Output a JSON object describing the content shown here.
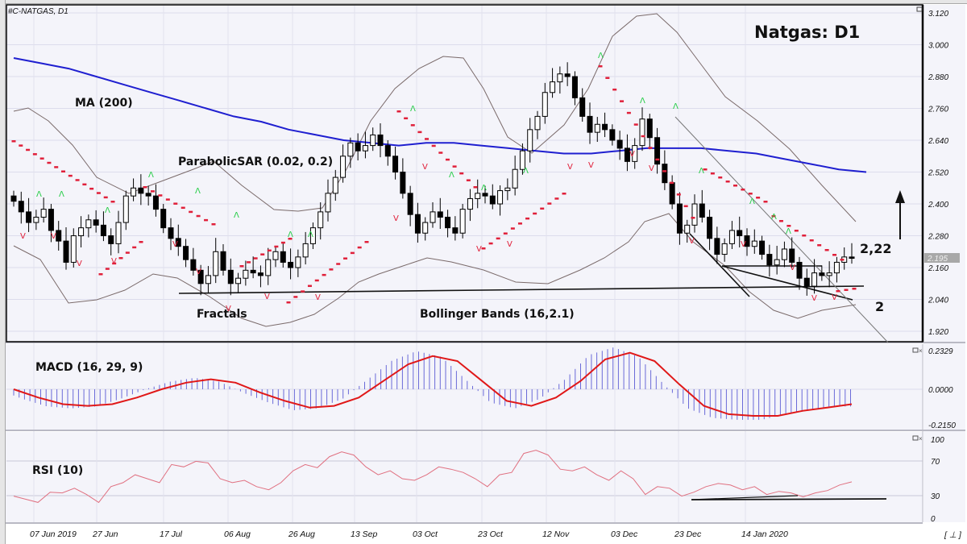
{
  "chart_header": {
    "symbol_label": "#C-NATGAS, D1",
    "title": "Natgas: D1"
  },
  "annotations": {
    "ma": "MA (200)",
    "psar": "ParabolicSAR (0.02, 0.2)",
    "fractals": "Fractals",
    "bollinger": "Bollinger Bands (16,2.1)",
    "macd": "MACD (16, 29, 9)",
    "rsi": "RSI (10)",
    "level_upper": "2,22",
    "level_lower": "2",
    "current_price_tag": "2.195"
  },
  "price_axis": {
    "ticks": [
      "3.120",
      "3.000",
      "2.880",
      "2.760",
      "2.640",
      "2.520",
      "2.400",
      "2.280",
      "2.160",
      "2.040",
      "1.920"
    ]
  },
  "macd_axis": {
    "ticks": [
      "0.2329",
      "0.0000",
      "-0.2150"
    ]
  },
  "rsi_axis": {
    "ticks": [
      "100",
      "70",
      "30",
      "0"
    ]
  },
  "date_axis": {
    "ticks": [
      "07 Jun 2019",
      "27 Jun",
      "17 Jul",
      "06 Aug",
      "26 Aug",
      "13 Sep",
      "03 Oct",
      "23 Oct",
      "12 Nov",
      "03 Dec",
      "23 Dec",
      "14 Jan 2020"
    ]
  },
  "footer": {
    "scroll_label": "[ ⊥ ]"
  },
  "colors": {
    "background": "#f4f4fa",
    "grid": "#dcdcec",
    "ma200": "#1f1fd0",
    "bollinger": "#7a6a6a",
    "psar": "#e0203a",
    "fractal_up": "#22cc44",
    "fractal_down": "#e0203a",
    "macd_hist": "#6a6ad8",
    "macd_signal": "#e01818",
    "rsi_line": "#e07080",
    "bull_candle": "#ffffff",
    "bear_candle": "#000000"
  },
  "chart_data": [
    {
      "type": "candlestick",
      "title": "Natgas: D1",
      "symbol": "#C-NATGAS, D1",
      "xlabel": "",
      "ylabel": "",
      "ylim": [
        1.92,
        3.12
      ],
      "x_ticks": [
        "07 Jun 2019",
        "27 Jun",
        "17 Jul",
        "06 Aug",
        "26 Aug",
        "13 Sep",
        "03 Oct",
        "23 Oct",
        "12 Nov",
        "03 Dec",
        "23 Dec",
        "14 Jan 2020"
      ],
      "closes_approx": [
        2.41,
        2.37,
        2.33,
        2.35,
        2.38,
        2.3,
        2.26,
        2.18,
        2.28,
        2.31,
        2.34,
        2.32,
        2.28,
        2.25,
        2.33,
        2.43,
        2.46,
        2.44,
        2.43,
        2.38,
        2.31,
        2.27,
        2.24,
        2.19,
        2.15,
        2.1,
        2.13,
        2.22,
        2.15,
        2.1,
        2.12,
        2.15,
        2.14,
        2.13,
        2.19,
        2.22,
        2.18,
        2.16,
        2.2,
        2.25,
        2.31,
        2.37,
        2.44,
        2.5,
        2.58,
        2.63,
        2.6,
        2.62,
        2.66,
        2.62,
        2.58,
        2.52,
        2.44,
        2.36,
        2.29,
        2.33,
        2.37,
        2.35,
        2.31,
        2.29,
        2.38,
        2.42,
        2.44,
        2.43,
        2.4,
        2.45,
        2.46,
        2.53,
        2.6,
        2.68,
        2.73,
        2.82,
        2.86,
        2.89,
        2.88,
        2.8,
        2.73,
        2.67,
        2.7,
        2.68,
        2.64,
        2.61,
        2.56,
        2.62,
        2.72,
        2.65,
        2.55,
        2.48,
        2.4,
        2.29,
        2.32,
        2.4,
        2.35,
        2.27,
        2.21,
        2.25,
        2.3,
        2.28,
        2.24,
        2.26,
        2.21,
        2.17,
        2.19,
        2.23,
        2.18,
        2.12,
        2.09,
        2.14,
        2.13,
        2.14,
        2.18,
        2.2,
        2.195
      ],
      "series": [
        {
          "name": "MA (200)",
          "values_approx": [
            2.95,
            2.93,
            2.91,
            2.88,
            2.85,
            2.82,
            2.79,
            2.76,
            2.73,
            2.71,
            2.68,
            2.66,
            2.64,
            2.63,
            2.62,
            2.63,
            2.63,
            2.62,
            2.61,
            2.6,
            2.59,
            2.59,
            2.6,
            2.61,
            2.61,
            2.61,
            2.6,
            2.59,
            2.57,
            2.55,
            2.53,
            2.52
          ]
        },
        {
          "name": "MACD signal",
          "values_approx": [
            0.0,
            -0.05,
            -0.09,
            -0.1,
            -0.09,
            -0.05,
            0.0,
            0.04,
            0.06,
            0.04,
            -0.02,
            -0.07,
            -0.11,
            -0.1,
            -0.05,
            0.05,
            0.15,
            0.2,
            0.17,
            0.05,
            -0.07,
            -0.1,
            -0.05,
            0.05,
            0.18,
            0.22,
            0.17,
            0.03,
            -0.1,
            -0.15,
            -0.16,
            -0.16,
            -0.13,
            -0.11,
            -0.09
          ]
        },
        {
          "name": "RSI (10)",
          "values_approx": [
            28,
            24,
            20,
            33,
            32,
            38,
            30,
            20,
            40,
            45,
            55,
            50,
            45,
            68,
            65,
            72,
            70,
            50,
            45,
            48,
            40,
            36,
            45,
            60,
            68,
            64,
            78,
            84,
            80,
            65,
            55,
            60,
            50,
            48,
            55,
            65,
            62,
            58,
            50,
            40,
            55,
            58,
            82,
            86,
            80,
            62,
            60,
            65,
            55,
            48,
            60,
            50,
            30,
            40,
            38,
            28,
            33,
            40,
            44,
            42,
            36,
            40,
            30,
            34,
            32,
            27,
            32,
            35,
            42,
            46
          ]
        }
      ],
      "levels": {
        "resistance": 2.22,
        "support": 2.0,
        "rsi_levels": [
          70,
          30
        ]
      },
      "current_price": 2.195
    }
  ]
}
